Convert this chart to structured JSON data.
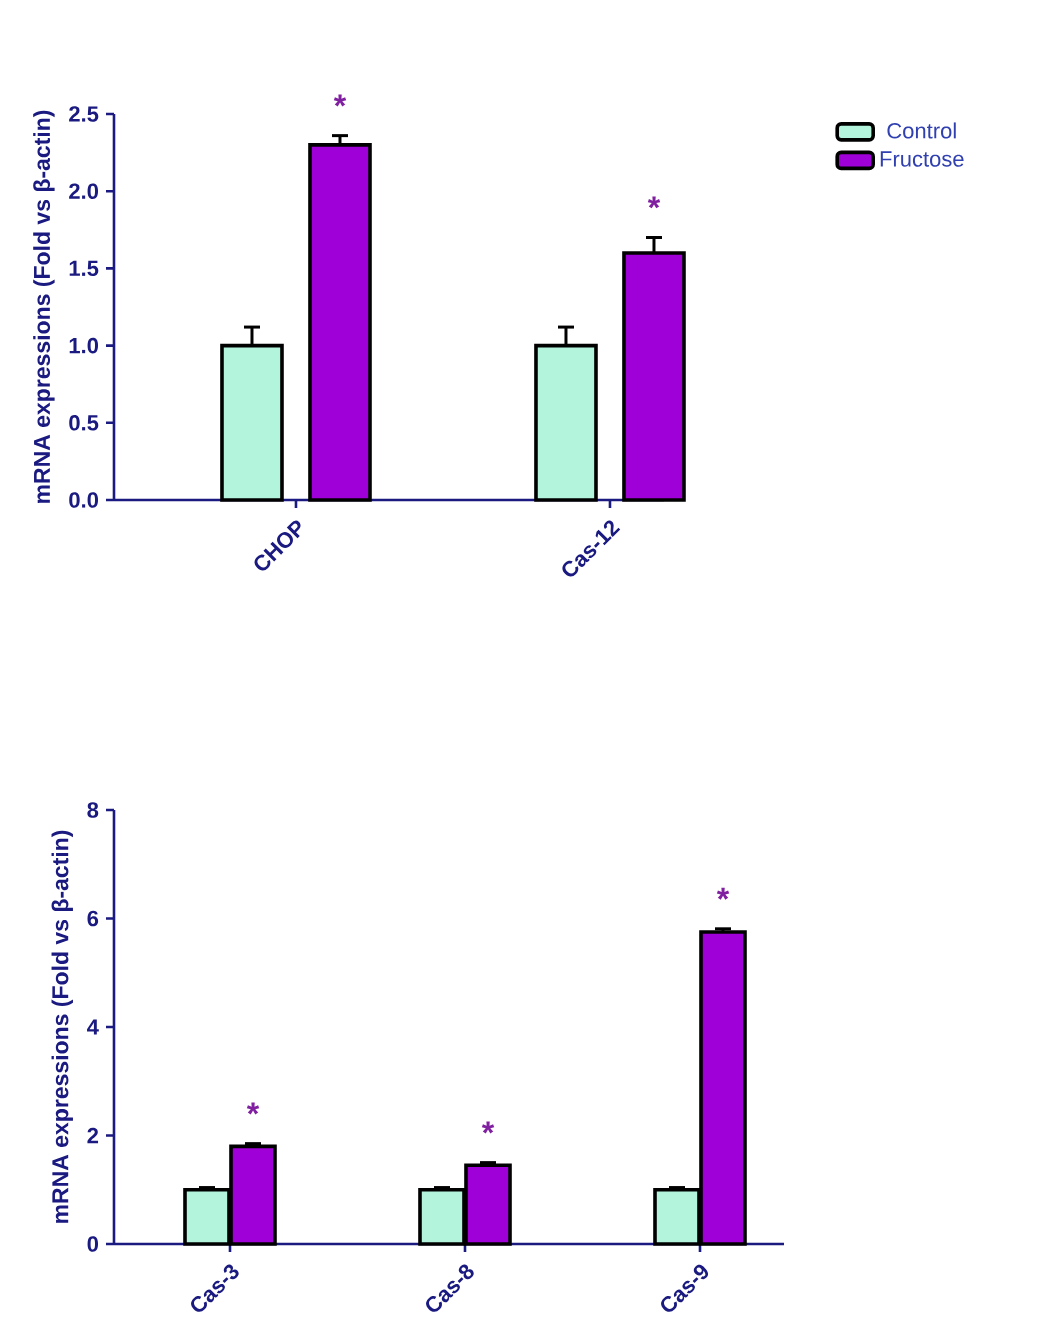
{
  "chart_data": [
    {
      "type": "bar",
      "ylabel": "mRNA expressions (Fold vs β-actin)",
      "categories": [
        "CHOP",
        "Cas-12"
      ],
      "series": [
        {
          "name": "Control",
          "color": "#b3f5dc",
          "values": [
            1.0,
            1.0
          ],
          "errors": [
            0.12,
            0.12
          ]
        },
        {
          "name": "Fructose",
          "color": "#a000d8",
          "values": [
            2.3,
            1.6
          ],
          "errors": [
            0.06,
            0.1
          ]
        }
      ],
      "ylim": [
        0,
        2.5
      ],
      "yticks": [
        {
          "value": 0,
          "label": "0.0"
        },
        {
          "value": 0.5,
          "label": "0.5"
        },
        {
          "value": 1,
          "label": "1.0"
        },
        {
          "value": 1.5,
          "label": "1.5"
        },
        {
          "value": 2,
          "label": "2.0"
        },
        {
          "value": 2.5,
          "label": "2.5"
        }
      ],
      "legend": "top right",
      "annotations": [
        "*",
        "*"
      ]
    },
    {
      "type": "bar",
      "ylabel": "mRNA expressions (Fold vs β-actin)",
      "categories": [
        "Cas-3",
        "Cas-8",
        "Cas-9"
      ],
      "series": [
        {
          "color": "#b3f5dc",
          "values": [
            1.0,
            1.0,
            1.0
          ],
          "errors": [
            0.04,
            0.04,
            0.04
          ]
        },
        {
          "color": "#a000d8",
          "values": [
            1.8,
            1.45,
            5.75
          ],
          "errors": [
            0.05,
            0.05,
            0.06
          ]
        }
      ],
      "ylim": [
        0,
        8
      ],
      "yticks": [
        0,
        2,
        4,
        6,
        8
      ],
      "annotations": [
        "*",
        "*",
        "*"
      ]
    }
  ]
}
